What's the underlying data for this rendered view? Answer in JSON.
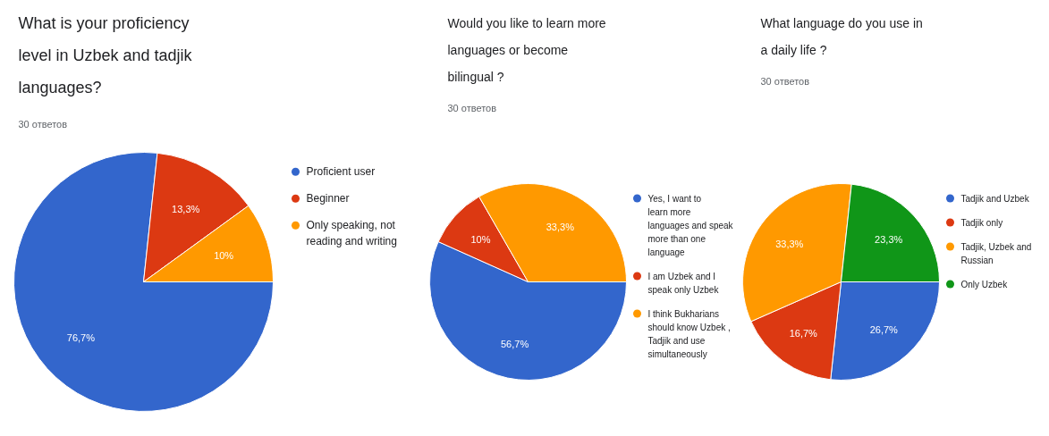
{
  "chart_data": [
    {
      "type": "pie",
      "title": "What is your proficiency level in Uzbek and tadjik languages?",
      "subtitle": "30 ответов",
      "categories": [
        "Proficient user",
        "Beginner",
        "Only speaking, not reading and writing"
      ],
      "values": [
        76.7,
        13.3,
        10
      ],
      "colors": [
        "#3366cc",
        "#dc3912",
        "#ff9900"
      ],
      "value_labels": [
        "76,7%",
        "13,3%",
        "10%"
      ],
      "legend": "right"
    },
    {
      "type": "pie",
      "title": "Would you like to learn more languages or become bilingual ?",
      "subtitle": "30 ответов",
      "categories": [
        "Yes, I want to learn more languages and speak more than one language",
        "I am Uzbek and I speak only Uzbek",
        "I think Bukharians should know Uzbek , Tadjik and use simultaneously"
      ],
      "values": [
        56.7,
        10,
        33.3
      ],
      "colors": [
        "#3366cc",
        "#dc3912",
        "#ff9900"
      ],
      "value_labels": [
        "56,7%",
        "10%",
        "33,3%"
      ],
      "legend": "right"
    },
    {
      "type": "pie",
      "title": "What language do you use in a daily life ?",
      "subtitle": "30 ответов",
      "categories": [
        "Tadjik and Uzbek",
        "Tadjik only",
        "Tadjik, Uzbek and Russian",
        "Only Uzbek"
      ],
      "values": [
        26.7,
        16.7,
        33.3,
        23.3
      ],
      "colors": [
        "#3366cc",
        "#dc3912",
        "#ff9900",
        "#109618"
      ],
      "value_labels": [
        "26,7%",
        "16,7%",
        "33,3%",
        "23,3%"
      ],
      "legend": "right"
    }
  ]
}
